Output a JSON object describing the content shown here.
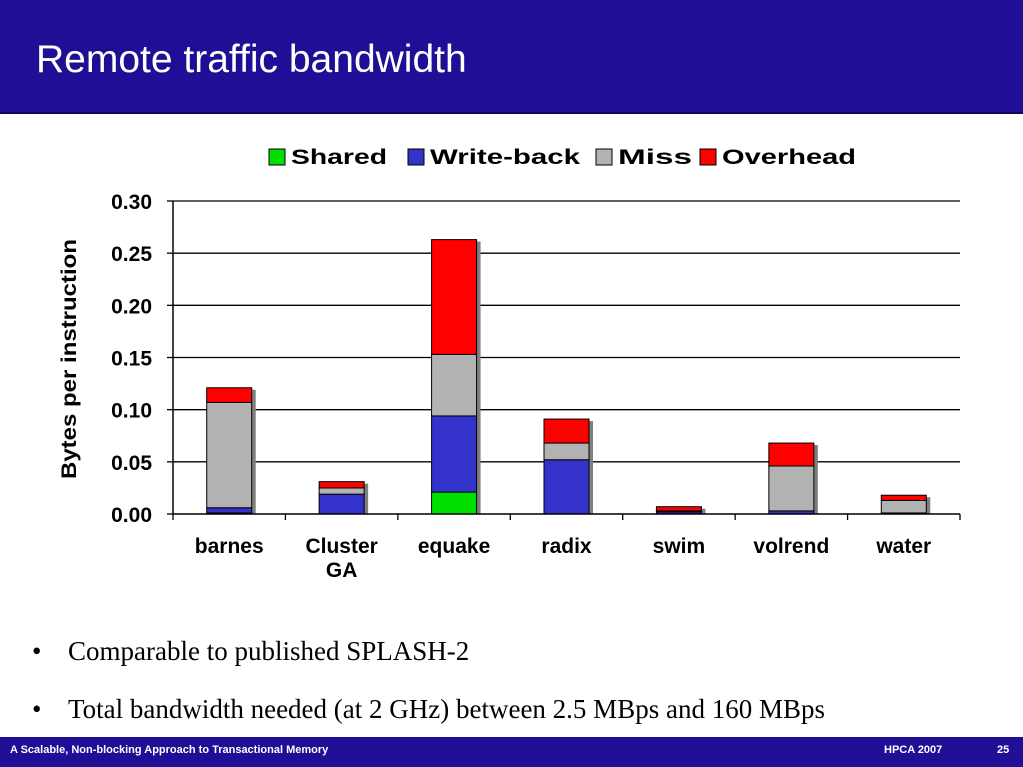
{
  "slide": {
    "title": "Remote traffic bandwidth",
    "bullets": [
      "Comparable to published SPLASH-2",
      "Total bandwidth needed (at 2 GHz) between 2.5 MBps and 160 MBps"
    ],
    "bullet_symbol": "•",
    "footer": {
      "left": "A Scalable, Non-blocking Approach to Transactional Memory",
      "conference": "HPCA 2007",
      "page": "25"
    },
    "colors": {
      "title_bar": "#1f0f96",
      "footer_bar": "#1f0f96"
    }
  },
  "chart_data": {
    "type": "bar",
    "stacked": true,
    "categories": [
      "barnes",
      "Cluster\nGA",
      "equake",
      "radix",
      "swim",
      "volrend",
      "water"
    ],
    "series": [
      {
        "name": "Shared",
        "color": "#00e000",
        "values": [
          0.001,
          0.0,
          0.021,
          0.0,
          0.0,
          0.0,
          0.0
        ]
      },
      {
        "name": "Write-back",
        "color": "#3333cc",
        "values": [
          0.005,
          0.019,
          0.073,
          0.052,
          0.002,
          0.003,
          0.001
        ]
      },
      {
        "name": "Miss",
        "color": "#b2b2b2",
        "values": [
          0.101,
          0.006,
          0.059,
          0.016,
          0.001,
          0.043,
          0.012
        ]
      },
      {
        "name": "Overhead",
        "color": "#ff0000",
        "values": [
          0.014,
          0.006,
          0.11,
          0.023,
          0.004,
          0.022,
          0.005
        ]
      }
    ],
    "ylabel": "Bytes per instruction",
    "ylim": [
      0,
      0.3
    ],
    "yticks": [
      "0.00",
      "0.05",
      "0.10",
      "0.15",
      "0.20",
      "0.25",
      "0.30"
    ],
    "grid": true,
    "legend": "top"
  }
}
